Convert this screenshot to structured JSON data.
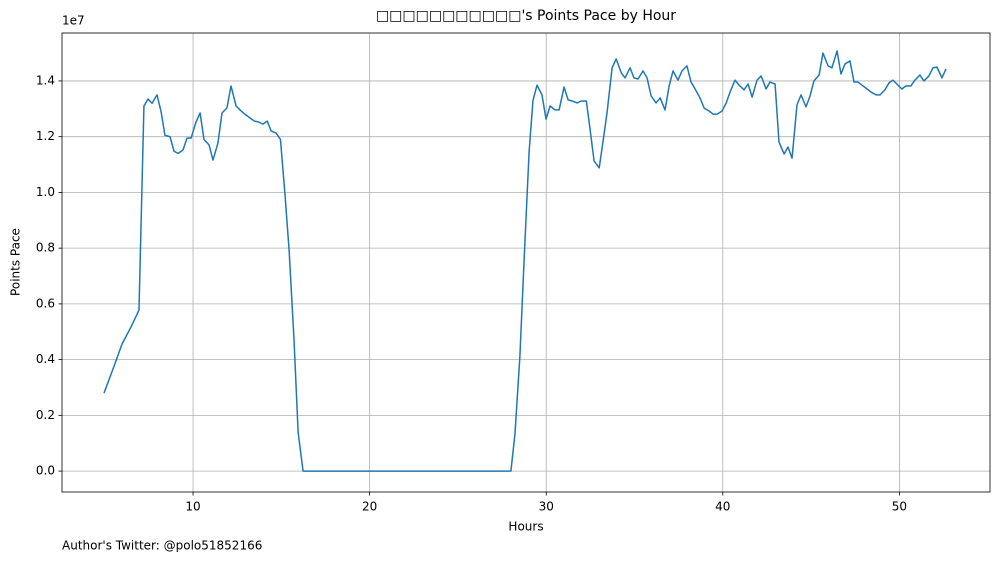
{
  "chart_data": {
    "type": "line",
    "title": "□□□□□□□□□□□'s Points Pace by Hour",
    "x_label": "Hours",
    "y_label": "Points Pace",
    "y_offset_label": "1e7",
    "footer": "Author's Twitter: @polo51852166",
    "grid": true,
    "xlim": [
      2.58,
      55.13
    ],
    "ylim": [
      -0.075,
      1.572
    ],
    "xticks": [
      10,
      20,
      30,
      40,
      50
    ],
    "yticks": [
      {
        "value": 0,
        "label": "0.0"
      },
      0.2,
      0.4,
      0.6,
      0.8,
      {
        "value": 1,
        "label": "1.0"
      },
      1.2,
      1.4
    ],
    "series": [
      {
        "name": "Points Pace",
        "color": "#1f77b4",
        "x": [
          4.96,
          5.53,
          5.98,
          6.51,
          6.94,
          7.22,
          7.45,
          7.68,
          7.96,
          8.19,
          8.41,
          8.7,
          8.92,
          9.15,
          9.43,
          9.66,
          9.89,
          10.17,
          10.4,
          10.62,
          10.91,
          11.13,
          11.41,
          11.64,
          11.92,
          12.15,
          12.44,
          12.66,
          12.95,
          13.23,
          13.47,
          13.7,
          13.97,
          14.2,
          14.43,
          14.7,
          14.95,
          15.21,
          15.44,
          15.72,
          15.95,
          16.23,
          28.0,
          28.23,
          28.51,
          28.74,
          29.03,
          29.25,
          29.48,
          29.76,
          29.99,
          30.22,
          30.5,
          30.73,
          31.01,
          31.24,
          31.47,
          31.75,
          31.98,
          32.27,
          32.48,
          32.71,
          33.0,
          33.22,
          33.45,
          33.73,
          33.96,
          34.25,
          34.46,
          34.75,
          34.97,
          35.2,
          35.48,
          35.71,
          35.94,
          36.22,
          36.45,
          36.73,
          36.96,
          37.18,
          37.46,
          37.69,
          37.97,
          38.2,
          38.43,
          38.71,
          38.94,
          39.22,
          39.45,
          39.68,
          39.96,
          40.19,
          40.41,
          40.69,
          40.92,
          41.2,
          41.43,
          41.66,
          41.94,
          42.17,
          42.45,
          42.67,
          42.96,
          43.18,
          43.47,
          43.69,
          43.92,
          44.2,
          44.43,
          44.71,
          44.94,
          45.16,
          45.45,
          45.67,
          45.96,
          46.18,
          46.47,
          46.69,
          46.92,
          47.2,
          47.43,
          47.65,
          47.94,
          48.17,
          48.39,
          48.68,
          48.9,
          49.18,
          49.41,
          49.63,
          49.92,
          50.14,
          50.37,
          50.65,
          50.88,
          51.16,
          51.39,
          51.67,
          51.9,
          52.12,
          52.41,
          52.64
        ],
        "values": [
          0.28,
          0.377,
          0.456,
          0.52,
          0.578,
          1.31,
          1.335,
          1.32,
          1.35,
          1.29,
          1.205,
          1.2,
          1.148,
          1.14,
          1.152,
          1.195,
          1.195,
          1.253,
          1.285,
          1.19,
          1.17,
          1.116,
          1.177,
          1.285,
          1.303,
          1.382,
          1.31,
          1.296,
          1.28,
          1.267,
          1.256,
          1.253,
          1.245,
          1.256,
          1.22,
          1.213,
          1.19,
          0.99,
          0.793,
          0.47,
          0.14,
          0,
          0,
          0.133,
          0.413,
          0.747,
          1.145,
          1.33,
          1.385,
          1.35,
          1.263,
          1.31,
          1.296,
          1.296,
          1.378,
          1.332,
          1.328,
          1.321,
          1.328,
          1.328,
          1.228,
          1.113,
          1.088,
          1.184,
          1.289,
          1.447,
          1.479,
          1.429,
          1.411,
          1.447,
          1.411,
          1.407,
          1.436,
          1.411,
          1.346,
          1.321,
          1.339,
          1.296,
          1.382,
          1.436,
          1.403,
          1.436,
          1.454,
          1.396,
          1.371,
          1.339,
          1.303,
          1.292,
          1.281,
          1.281,
          1.292,
          1.321,
          1.36,
          1.403,
          1.385,
          1.368,
          1.389,
          1.342,
          1.403,
          1.418,
          1.371,
          1.396,
          1.389,
          1.181,
          1.138,
          1.163,
          1.123,
          1.314,
          1.35,
          1.307,
          1.346,
          1.4,
          1.421,
          1.5,
          1.454,
          1.447,
          1.508,
          1.425,
          1.461,
          1.472,
          1.396,
          1.396,
          1.382,
          1.371,
          1.36,
          1.35,
          1.35,
          1.368,
          1.393,
          1.403,
          1.385,
          1.371,
          1.382,
          1.382,
          1.403,
          1.421,
          1.4,
          1.418,
          1.447,
          1.45,
          1.411,
          1.443
        ]
      }
    ]
  }
}
